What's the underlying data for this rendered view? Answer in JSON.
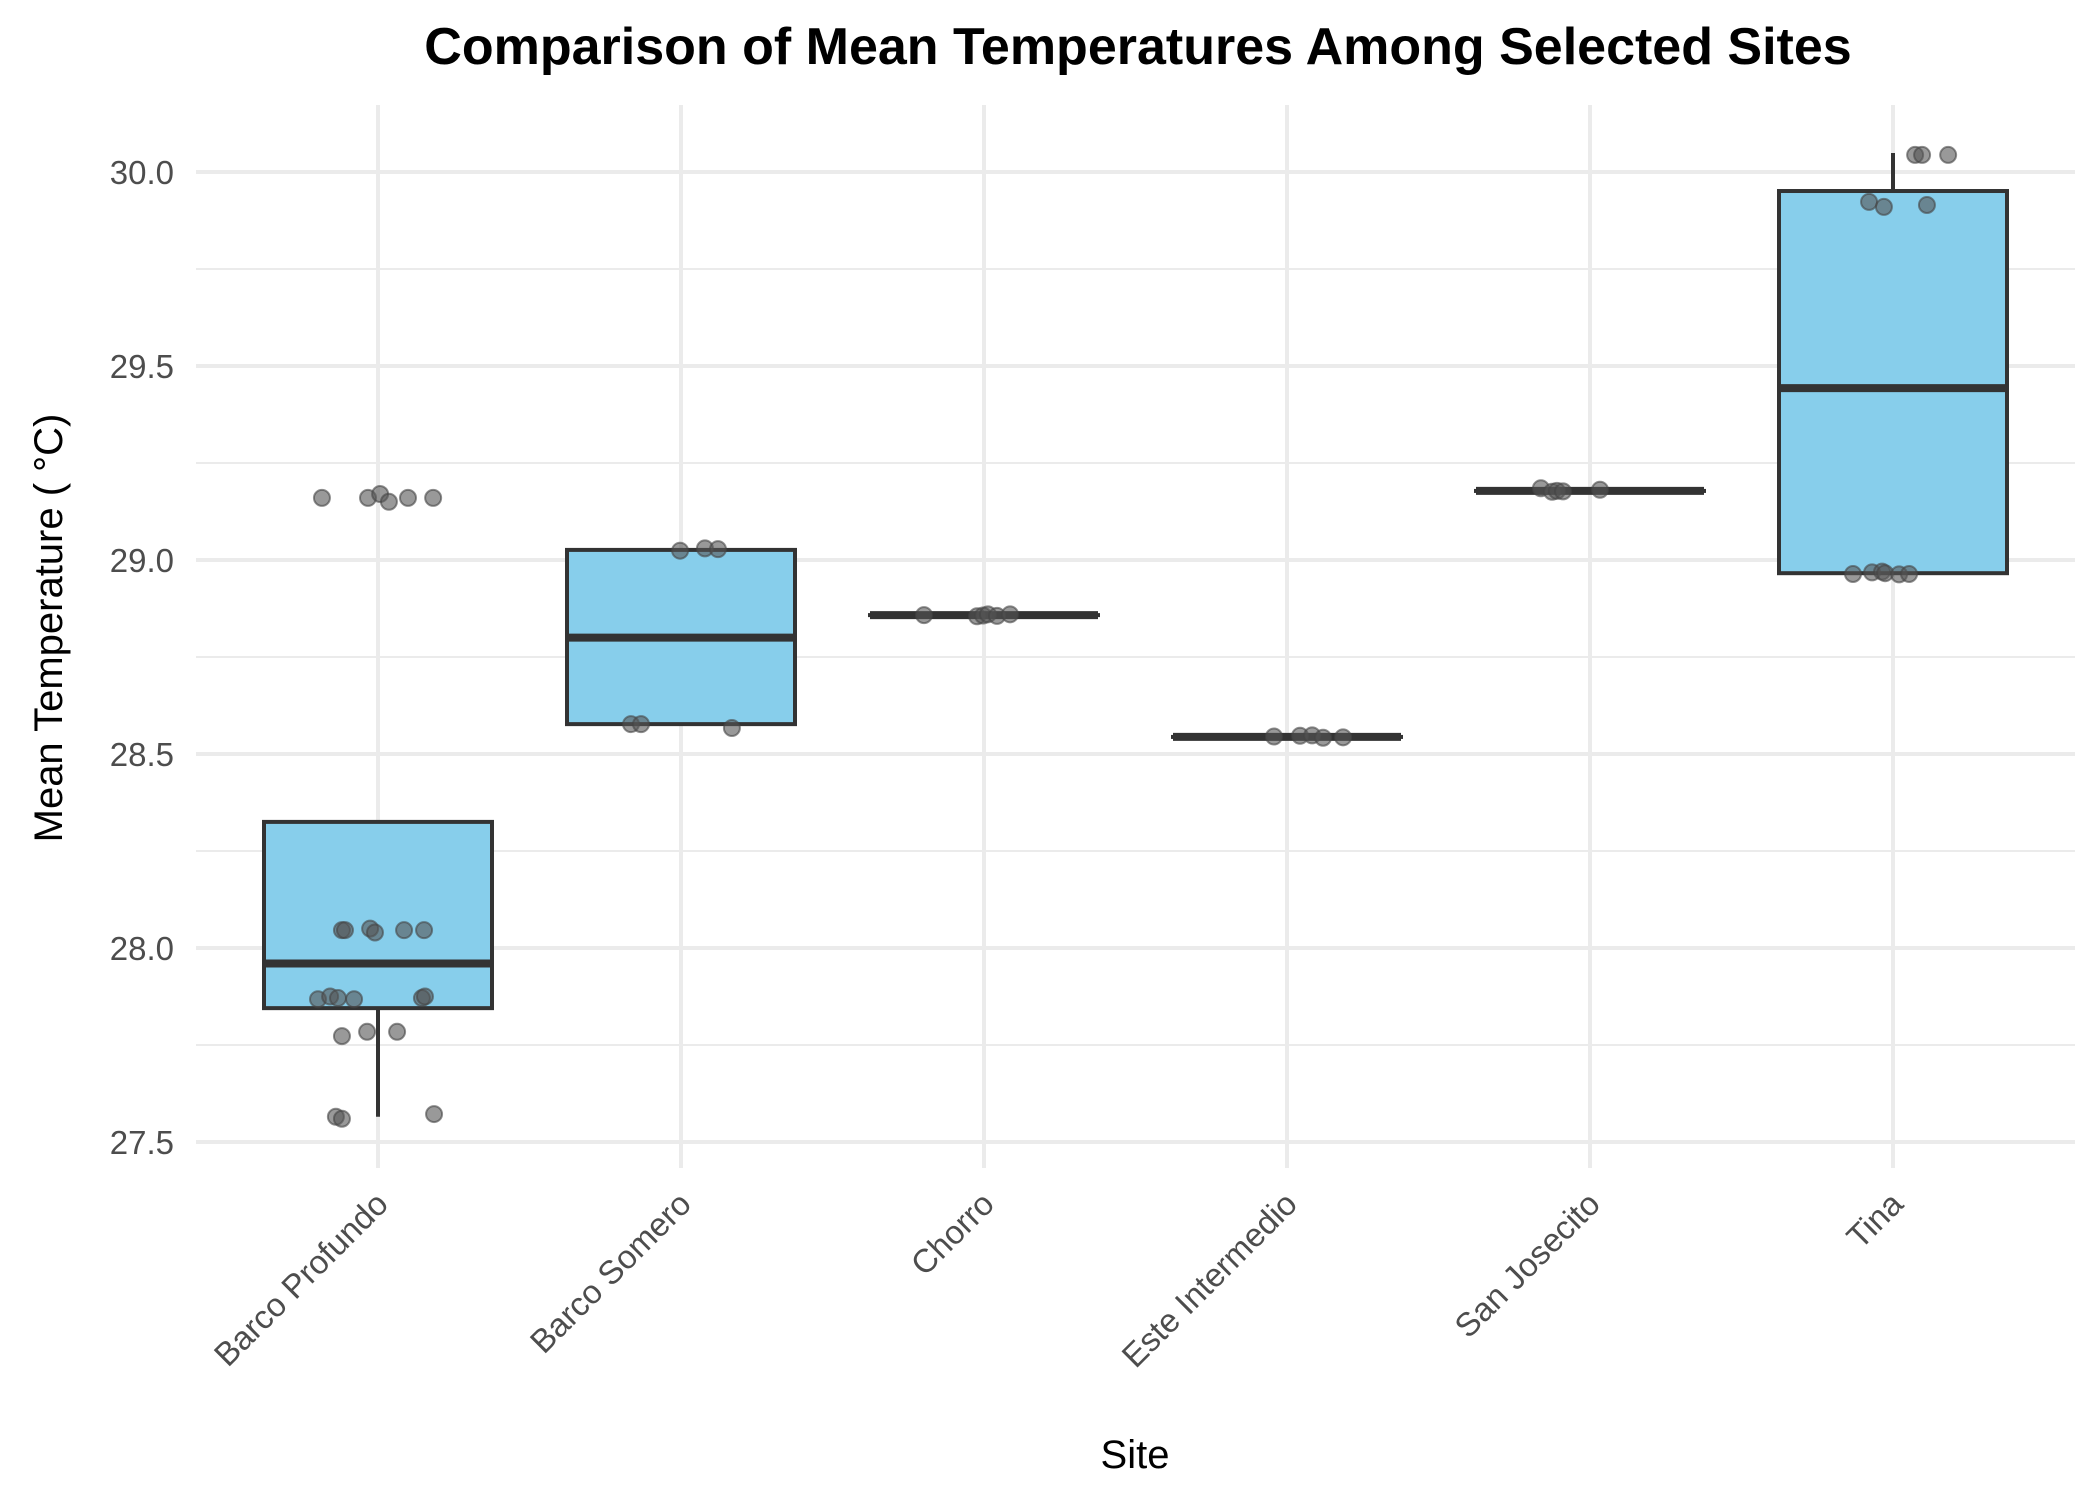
{
  "chart_data": {
    "type": "box",
    "title": "Comparison of Mean Temperatures Among Selected Sites",
    "xlabel": "Site",
    "ylabel": "Mean Temperature ( °C)",
    "ylim": [
      27.42,
      30.17
    ],
    "yticks": [
      27.5,
      28.0,
      28.5,
      29.0,
      29.5,
      30.0
    ],
    "ytick_labels": [
      "27.5",
      "28.0",
      "28.5",
      "29.0",
      "29.5",
      "30.0"
    ],
    "grid": true,
    "legend": "none",
    "box_color": "#87ceeb",
    "line_color": "#333333",
    "point_color": "#555555",
    "categories": [
      "Barco Profundo",
      "Barco Somero",
      "Chorro",
      "Este Intermedio",
      "San Josecito",
      "Tina"
    ],
    "boxes": [
      {
        "site": "Barco Profundo",
        "whisker_low": 27.565,
        "q1": 27.845,
        "median": 27.96,
        "q3": 28.325,
        "whisker_high": 28.325
      },
      {
        "site": "Barco Somero",
        "whisker_low": 28.577,
        "q1": 28.577,
        "median": 28.8,
        "q3": 29.026,
        "whisker_high": 29.026
      },
      {
        "site": "Chorro",
        "whisker_low": 28.858,
        "q1": 28.858,
        "median": 28.858,
        "q3": 28.858,
        "whisker_high": 28.858
      },
      {
        "site": "Este Intermedio",
        "whisker_low": 28.544,
        "q1": 28.544,
        "median": 28.544,
        "q3": 28.544,
        "whisker_high": 28.544
      },
      {
        "site": "San Josecito",
        "whisker_low": 29.178,
        "q1": 29.178,
        "median": 29.178,
        "q3": 29.178,
        "whisker_high": 29.178
      },
      {
        "site": "Tina",
        "whisker_low": 28.966,
        "q1": 28.966,
        "median": 29.443,
        "q3": 29.951,
        "whisker_high": 30.049
      }
    ],
    "points": [
      {
        "site": 0,
        "jitter": -0.185,
        "y": 29.16
      },
      {
        "site": 0,
        "jitter": -0.033,
        "y": 29.16
      },
      {
        "site": 0,
        "jitter": 0.007,
        "y": 29.17
      },
      {
        "site": 0,
        "jitter": 0.036,
        "y": 29.15
      },
      {
        "site": 0,
        "jitter": 0.099,
        "y": 29.16
      },
      {
        "site": 0,
        "jitter": 0.182,
        "y": 29.16
      },
      {
        "site": 0,
        "jitter": -0.119,
        "y": 28.046
      },
      {
        "site": 0,
        "jitter": -0.109,
        "y": 28.046
      },
      {
        "site": 0,
        "jitter": -0.026,
        "y": 28.05
      },
      {
        "site": 0,
        "jitter": -0.01,
        "y": 28.04
      },
      {
        "site": 0,
        "jitter": 0.086,
        "y": 28.046
      },
      {
        "site": 0,
        "jitter": 0.152,
        "y": 28.046
      },
      {
        "site": 0,
        "jitter": -0.198,
        "y": 27.868
      },
      {
        "site": 0,
        "jitter": -0.158,
        "y": 27.875
      },
      {
        "site": 0,
        "jitter": -0.132,
        "y": 27.871
      },
      {
        "site": 0,
        "jitter": -0.079,
        "y": 27.868
      },
      {
        "site": 0,
        "jitter": 0.145,
        "y": 27.871
      },
      {
        "site": 0,
        "jitter": 0.155,
        "y": 27.875
      },
      {
        "site": 0,
        "jitter": -0.119,
        "y": 27.773
      },
      {
        "site": 0,
        "jitter": -0.036,
        "y": 27.784
      },
      {
        "site": 0,
        "jitter": 0.063,
        "y": 27.784
      },
      {
        "site": 0,
        "jitter": -0.139,
        "y": 27.565
      },
      {
        "site": 0,
        "jitter": -0.119,
        "y": 27.56
      },
      {
        "site": 0,
        "jitter": 0.185,
        "y": 27.572
      },
      {
        "site": 1,
        "jitter": -0.003,
        "y": 29.024
      },
      {
        "site": 1,
        "jitter": 0.079,
        "y": 29.03
      },
      {
        "site": 1,
        "jitter": 0.122,
        "y": 29.028
      },
      {
        "site": 1,
        "jitter": -0.165,
        "y": 28.577
      },
      {
        "site": 1,
        "jitter": -0.132,
        "y": 28.577
      },
      {
        "site": 1,
        "jitter": 0.168,
        "y": 28.567
      },
      {
        "site": 2,
        "jitter": -0.198,
        "y": 28.858
      },
      {
        "site": 2,
        "jitter": -0.023,
        "y": 28.855
      },
      {
        "site": 2,
        "jitter": -0.003,
        "y": 28.857
      },
      {
        "site": 2,
        "jitter": 0.013,
        "y": 28.86
      },
      {
        "site": 2,
        "jitter": 0.043,
        "y": 28.856
      },
      {
        "site": 2,
        "jitter": 0.086,
        "y": 28.86
      },
      {
        "site": 3,
        "jitter": -0.043,
        "y": 28.545
      },
      {
        "site": 3,
        "jitter": 0.043,
        "y": 28.547
      },
      {
        "site": 3,
        "jitter": 0.083,
        "y": 28.548
      },
      {
        "site": 3,
        "jitter": 0.119,
        "y": 28.542
      },
      {
        "site": 3,
        "jitter": 0.185,
        "y": 28.543
      },
      {
        "site": 4,
        "jitter": -0.162,
        "y": 29.185
      },
      {
        "site": 4,
        "jitter": -0.125,
        "y": 29.176
      },
      {
        "site": 4,
        "jitter": -0.109,
        "y": 29.178
      },
      {
        "site": 4,
        "jitter": -0.089,
        "y": 29.177
      },
      {
        "site": 4,
        "jitter": 0.033,
        "y": 29.181
      },
      {
        "site": 5,
        "jitter": 0.073,
        "y": 30.044
      },
      {
        "site": 5,
        "jitter": 0.096,
        "y": 30.044
      },
      {
        "site": 5,
        "jitter": 0.182,
        "y": 30.044
      },
      {
        "site": 5,
        "jitter": -0.079,
        "y": 29.923
      },
      {
        "site": 5,
        "jitter": -0.03,
        "y": 29.91
      },
      {
        "site": 5,
        "jitter": 0.112,
        "y": 29.915
      },
      {
        "site": 5,
        "jitter": -0.132,
        "y": 28.964
      },
      {
        "site": 5,
        "jitter": -0.069,
        "y": 28.968
      },
      {
        "site": 5,
        "jitter": -0.036,
        "y": 28.97
      },
      {
        "site": 5,
        "jitter": -0.026,
        "y": 28.966
      },
      {
        "site": 5,
        "jitter": 0.02,
        "y": 28.963
      },
      {
        "site": 5,
        "jitter": 0.053,
        "y": 28.964
      }
    ]
  }
}
